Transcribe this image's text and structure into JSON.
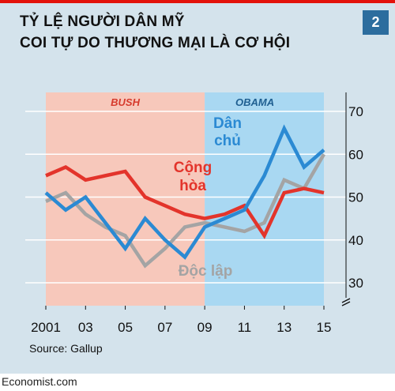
{
  "header": {
    "title_line1": "TỶ LỆ NGƯỜI DÂN MỸ",
    "title_line2": "COI TỰ DO THƯƠNG MẠI LÀ CƠ HỘI",
    "chart_number": "2"
  },
  "footer": {
    "source": "Source: Gallup",
    "watermark": "Economist.com"
  },
  "colors": {
    "republican": "#e3342b",
    "democrat": "#2b8ad3",
    "independent": "#a4a4a4",
    "bush_band": "#f7c8bb",
    "obama_band": "#a9d8f2"
  },
  "chart_data": {
    "type": "line",
    "x_range": [
      2001,
      2015
    ],
    "ylim": [
      30,
      70
    ],
    "y_ticks": [
      30,
      40,
      50,
      60,
      70
    ],
    "x_tick_labels": [
      "2001",
      "03",
      "05",
      "07",
      "09",
      "11",
      "13",
      "15"
    ],
    "x_ticks": [
      2001,
      2003,
      2005,
      2007,
      2009,
      2011,
      2013,
      2015
    ],
    "y_axis_break": true,
    "periods": [
      {
        "label": "BUSH",
        "start": 2001,
        "end": 2009
      },
      {
        "label": "OBAMA",
        "start": 2009,
        "end": 2015
      }
    ],
    "series": [
      {
        "name": "Cộng hòa",
        "label_lines": [
          "Cộng",
          "hòa"
        ],
        "color": "#e3342b",
        "x": [
          2001,
          2002,
          2003,
          2004,
          2005,
          2006,
          2007,
          2008,
          2009,
          2010,
          2011,
          2012,
          2013,
          2014,
          2015
        ],
        "y": [
          55,
          57,
          54,
          55,
          56,
          50,
          48,
          46,
          45,
          46,
          48,
          41,
          51,
          52,
          51
        ]
      },
      {
        "name": "Dân chủ",
        "label_lines": [
          "Dân",
          "chủ"
        ],
        "color": "#2b8ad3",
        "x": [
          2001,
          2002,
          2003,
          2004,
          2005,
          2006,
          2007,
          2008,
          2009,
          2010,
          2011,
          2012,
          2013,
          2014,
          2015
        ],
        "y": [
          51,
          47,
          50,
          44,
          38,
          45,
          40,
          36,
          43,
          45,
          47,
          55,
          66,
          57,
          61
        ]
      },
      {
        "name": "Độc lập",
        "label_lines": [
          "Độc lập"
        ],
        "color": "#a4a4a4",
        "x": [
          2001,
          2002,
          2003,
          2004,
          2005,
          2006,
          2007,
          2008,
          2009,
          2010,
          2011,
          2012,
          2013,
          2014,
          2015
        ],
        "y": [
          49,
          51,
          46,
          43,
          41,
          34,
          38,
          43,
          44,
          43,
          42,
          44,
          54,
          52,
          60
        ]
      }
    ]
  }
}
